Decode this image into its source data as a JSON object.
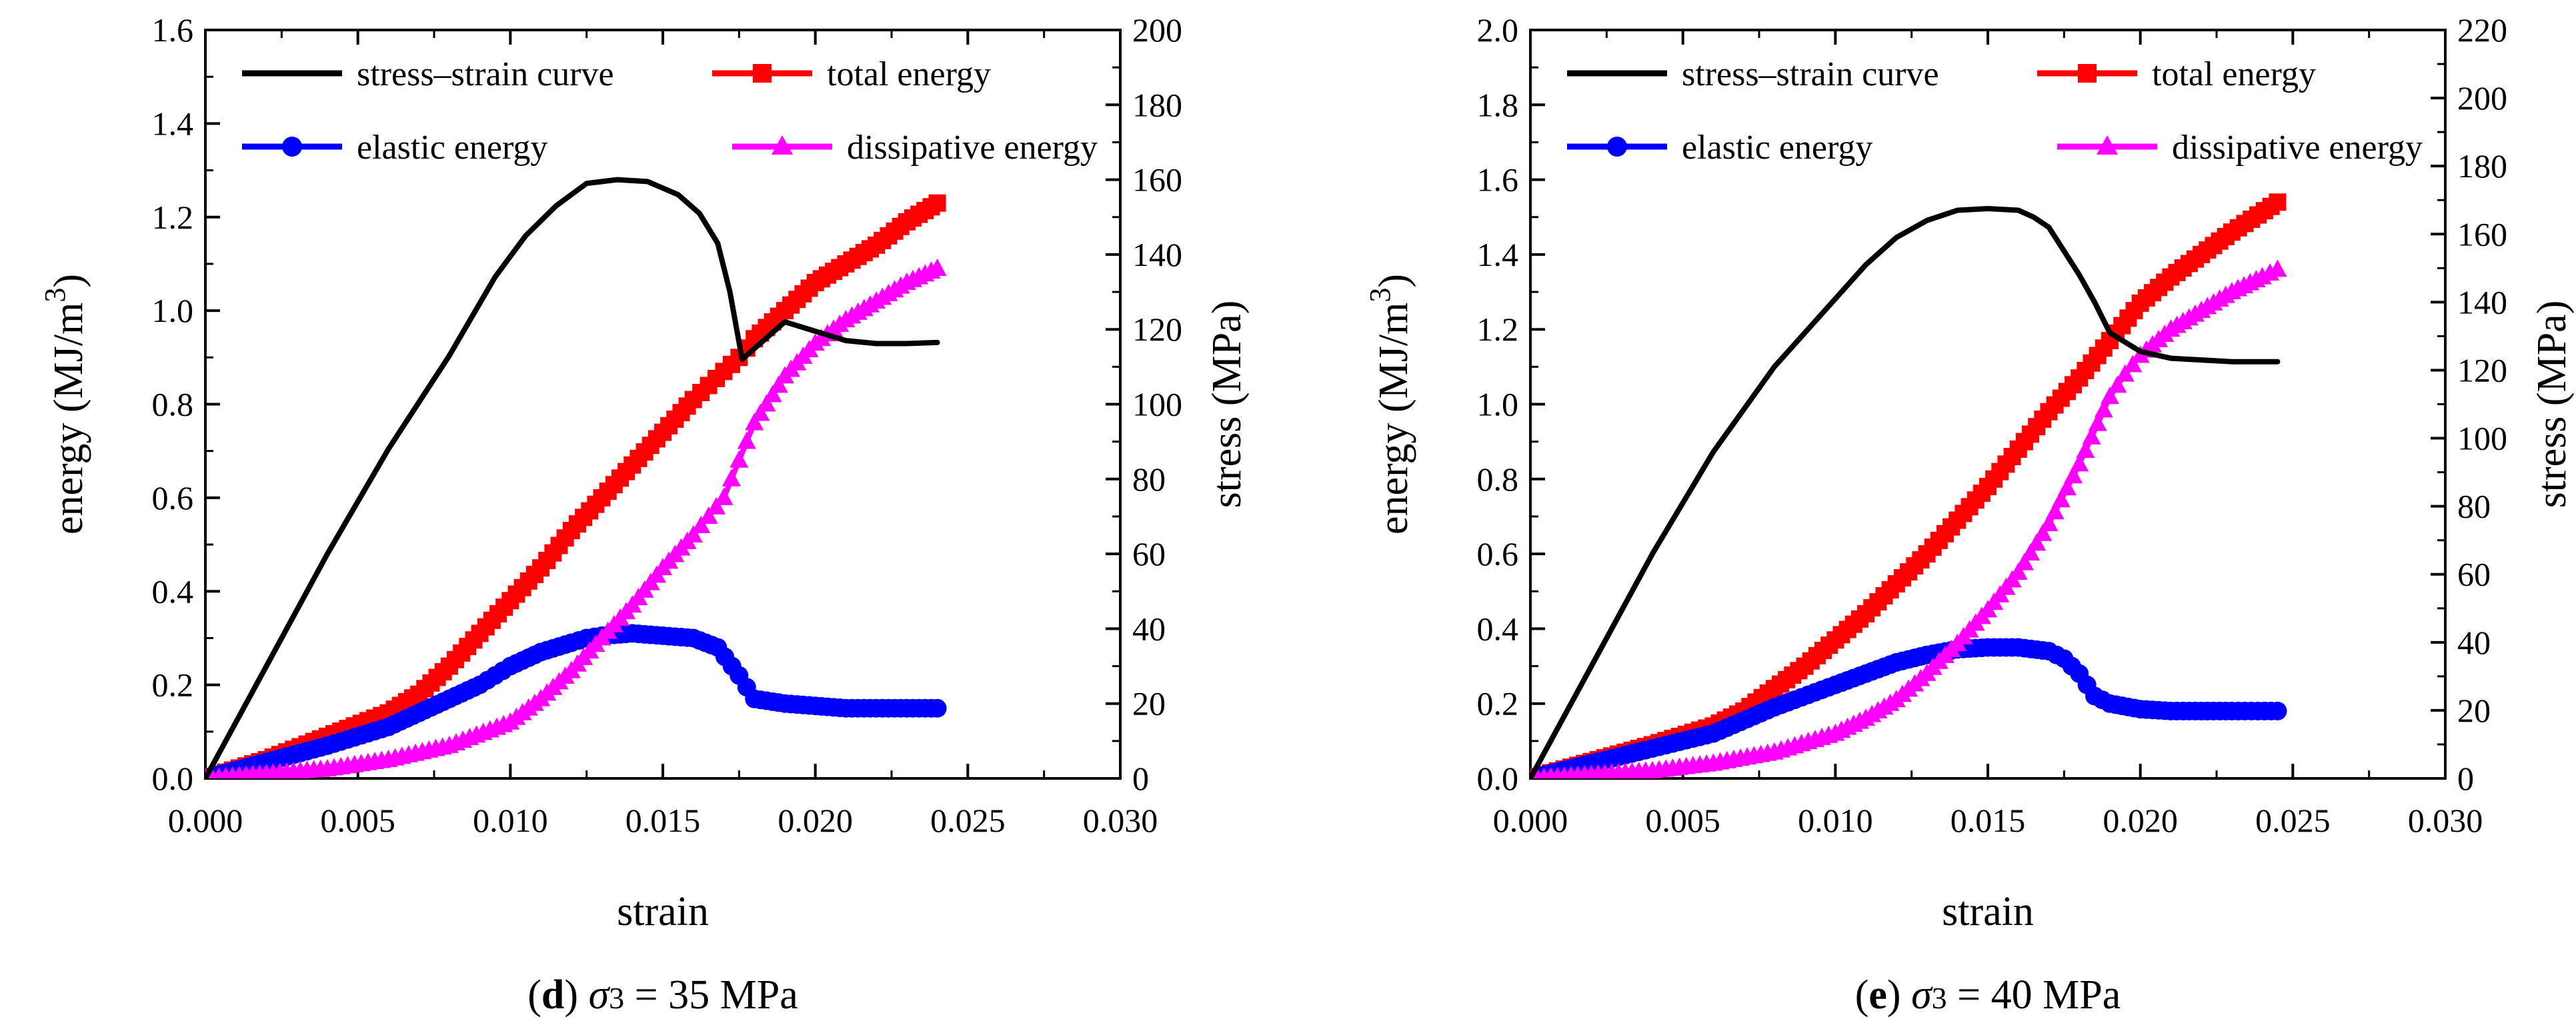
{
  "chart_data": [
    {
      "type": "line",
      "caption_letter": "d",
      "caption_sigma": "σ",
      "caption_sub": "3",
      "caption_value": " = 35 MPa",
      "xlabel": "strain",
      "ylabel": "energy (MJ/m",
      "ylabel_sup": "3",
      "ylabel_close": ")",
      "y2label": "stress (MPa)",
      "xlim": [
        0,
        0.03
      ],
      "ylim": [
        0,
        1.6
      ],
      "y2lim": [
        0,
        200
      ],
      "xticks": [
        "0.000",
        "0.005",
        "0.010",
        "0.015",
        "0.020",
        "0.025",
        "0.030"
      ],
      "yticks": [
        "0.0",
        "0.2",
        "0.4",
        "0.6",
        "0.8",
        "1.0",
        "1.2",
        "1.4",
        "1.6"
      ],
      "y2ticks": [
        "0",
        "20",
        "40",
        "60",
        "80",
        "100",
        "120",
        "140",
        "160",
        "180",
        "200"
      ],
      "legend": [
        "stress–strain curve",
        "total energy",
        "elastic energy",
        "dissipative energy"
      ],
      "stress_series": {
        "name": "stress–strain curve",
        "axis": "right",
        "x": [
          0,
          0.002,
          0.004,
          0.006,
          0.008,
          0.0095,
          0.0105,
          0.0115,
          0.0125,
          0.0135,
          0.0145,
          0.0155,
          0.0162,
          0.0168,
          0.0172,
          0.0176,
          0.019,
          0.021,
          0.022,
          0.023,
          0.024
        ],
        "values": [
          0,
          30,
          60,
          88,
          113,
          134,
          145,
          153,
          159,
          160,
          159.5,
          156,
          151,
          143,
          130,
          112,
          122,
          117,
          116.2,
          116.2,
          116.5
        ]
      },
      "series": [
        {
          "name": "total energy",
          "color": "#ff0000",
          "marker": "square",
          "x": [
            0,
            0.002,
            0.004,
            0.006,
            0.007,
            0.008,
            0.009,
            0.01,
            0.011,
            0.012,
            0.013,
            0.014,
            0.015,
            0.016,
            0.0165,
            0.017,
            0.0175,
            0.018,
            0.019,
            0.02,
            0.021,
            0.022,
            0.023,
            0.024
          ],
          "values": [
            0,
            0.04,
            0.09,
            0.14,
            0.18,
            0.24,
            0.31,
            0.38,
            0.45,
            0.53,
            0.6,
            0.67,
            0.74,
            0.81,
            0.84,
            0.87,
            0.9,
            0.94,
            1.0,
            1.06,
            1.1,
            1.14,
            1.19,
            1.23
          ]
        },
        {
          "name": "elastic energy",
          "color": "#0000ff",
          "marker": "circle",
          "x": [
            0,
            0.002,
            0.004,
            0.006,
            0.007,
            0.008,
            0.009,
            0.0095,
            0.01,
            0.011,
            0.012,
            0.0125,
            0.013,
            0.014,
            0.015,
            0.016,
            0.0168,
            0.0175,
            0.018,
            0.019,
            0.02,
            0.021,
            0.022,
            0.023,
            0.024
          ],
          "values": [
            0,
            0.035,
            0.07,
            0.11,
            0.14,
            0.17,
            0.2,
            0.22,
            0.24,
            0.27,
            0.29,
            0.3,
            0.305,
            0.31,
            0.305,
            0.3,
            0.28,
            0.22,
            0.17,
            0.16,
            0.155,
            0.15,
            0.15,
            0.15,
            0.15
          ]
        },
        {
          "name": "dissipative energy",
          "color": "#ff00ff",
          "marker": "triangle",
          "x": [
            0,
            0.002,
            0.004,
            0.006,
            0.008,
            0.01,
            0.011,
            0.012,
            0.013,
            0.014,
            0.015,
            0.016,
            0.0165,
            0.017,
            0.0175,
            0.018,
            0.019,
            0.02,
            0.021,
            0.022,
            0.023,
            0.024
          ],
          "values": [
            0,
            0.01,
            0.02,
            0.04,
            0.07,
            0.12,
            0.17,
            0.23,
            0.3,
            0.37,
            0.45,
            0.52,
            0.56,
            0.6,
            0.68,
            0.76,
            0.86,
            0.93,
            0.98,
            1.02,
            1.06,
            1.09
          ]
        }
      ]
    },
    {
      "type": "line",
      "caption_letter": "e",
      "caption_sigma": "σ",
      "caption_sub": "3",
      "caption_value": " = 40 MPa",
      "xlabel": "strain",
      "ylabel": "energy (MJ/m",
      "ylabel_sup": "3",
      "ylabel_close": ")",
      "y2label": "stress (MPa)",
      "xlim": [
        0,
        0.03
      ],
      "ylim": [
        0,
        2.0
      ],
      "y2lim": [
        0,
        220
      ],
      "xticks": [
        "0.000",
        "0.005",
        "0.010",
        "0.015",
        "0.020",
        "0.025",
        "0.030"
      ],
      "yticks": [
        "0.0",
        "0.2",
        "0.4",
        "0.6",
        "0.8",
        "1.0",
        "1.2",
        "1.4",
        "1.6",
        "1.8",
        "2.0"
      ],
      "y2ticks": [
        "0",
        "20",
        "40",
        "60",
        "80",
        "100",
        "120",
        "140",
        "160",
        "180",
        "200",
        "220"
      ],
      "legend": [
        "stress–strain curve",
        "total energy",
        "elastic energy",
        "dissipative energy"
      ],
      "stress_series": {
        "name": "stress–strain curve",
        "axis": "right",
        "x": [
          0,
          0.002,
          0.004,
          0.006,
          0.008,
          0.01,
          0.011,
          0.012,
          0.013,
          0.014,
          0.015,
          0.016,
          0.0165,
          0.017,
          0.018,
          0.0185,
          0.019,
          0.02,
          0.021,
          0.022,
          0.023,
          0.0245
        ],
        "values": [
          0,
          33,
          66,
          96,
          121,
          141,
          151,
          159,
          164,
          167,
          167.5,
          167,
          165,
          162,
          148,
          140,
          131,
          125.5,
          123.5,
          123,
          122.5,
          122.5
        ]
      },
      "series": [
        {
          "name": "total energy",
          "color": "#ff0000",
          "marker": "square",
          "x": [
            0,
            0.002,
            0.004,
            0.006,
            0.007,
            0.008,
            0.009,
            0.01,
            0.011,
            0.012,
            0.013,
            0.014,
            0.015,
            0.016,
            0.017,
            0.018,
            0.019,
            0.02,
            0.021,
            0.022,
            0.023,
            0.0245
          ],
          "values": [
            0,
            0.045,
            0.09,
            0.14,
            0.18,
            0.24,
            0.3,
            0.37,
            0.44,
            0.52,
            0.6,
            0.69,
            0.78,
            0.88,
            0.98,
            1.07,
            1.17,
            1.27,
            1.34,
            1.4,
            1.46,
            1.54
          ]
        },
        {
          "name": "elastic energy",
          "color": "#0000ff",
          "marker": "circle",
          "x": [
            0,
            0.002,
            0.004,
            0.006,
            0.008,
            0.01,
            0.011,
            0.012,
            0.013,
            0.014,
            0.015,
            0.016,
            0.017,
            0.0175,
            0.018,
            0.0185,
            0.019,
            0.02,
            0.021,
            0.022,
            0.023,
            0.0245
          ],
          "values": [
            0,
            0.04,
            0.08,
            0.12,
            0.19,
            0.25,
            0.28,
            0.31,
            0.33,
            0.345,
            0.35,
            0.35,
            0.34,
            0.32,
            0.28,
            0.22,
            0.2,
            0.185,
            0.18,
            0.18,
            0.18,
            0.18
          ]
        },
        {
          "name": "dissipative energy",
          "color": "#ff00ff",
          "marker": "triangle",
          "x": [
            0,
            0.002,
            0.004,
            0.006,
            0.008,
            0.01,
            0.011,
            0.012,
            0.013,
            0.014,
            0.015,
            0.016,
            0.017,
            0.018,
            0.019,
            0.0195,
            0.02,
            0.021,
            0.022,
            0.023,
            0.024,
            0.0245
          ],
          "values": [
            0,
            0.01,
            0.02,
            0.04,
            0.07,
            0.12,
            0.16,
            0.21,
            0.28,
            0.36,
            0.45,
            0.55,
            0.68,
            0.84,
            1.02,
            1.08,
            1.13,
            1.2,
            1.25,
            1.3,
            1.34,
            1.36
          ]
        }
      ]
    }
  ]
}
